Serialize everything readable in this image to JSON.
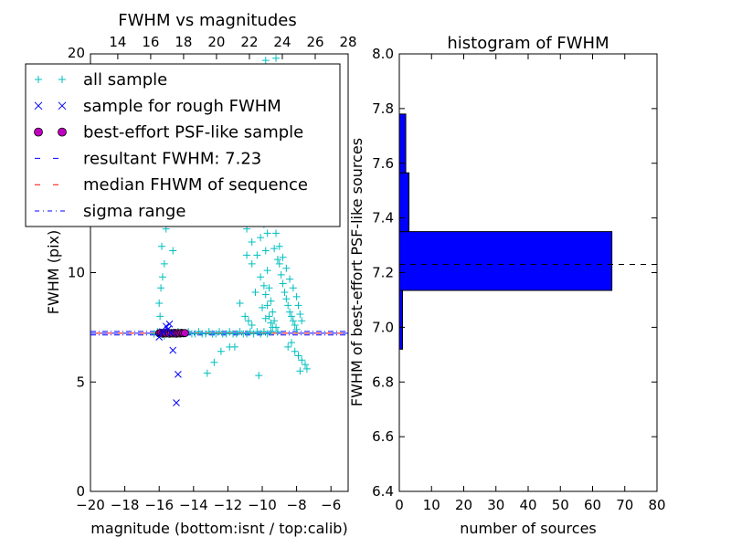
{
  "chart_data": [
    {
      "type": "scatter",
      "title": "FWHM vs magnitudes",
      "xlabel": "magnitude (bottom:isnt / top:calib)",
      "ylabel": "FWHM (pix)",
      "xlim": [
        -20,
        -5
      ],
      "ylim": [
        0,
        20
      ],
      "top_xlim": [
        12.34,
        28
      ],
      "x_ticks": [
        "−20",
        "−18",
        "−16",
        "−14",
        "−12",
        "−10",
        "−8",
        "−6"
      ],
      "y_ticks": [
        "0",
        "5",
        "10"
      ],
      "top_ticks": [
        "14",
        "16",
        "18",
        "20",
        "22",
        "24",
        "26",
        "28"
      ],
      "top_corner_label": "20",
      "legend": {
        "placement": "upper-left",
        "entries": [
          {
            "label": "all sample",
            "marker": "+",
            "color": "#00bfbf"
          },
          {
            "label": "sample for rough FWHM",
            "marker": "x",
            "color": "#0000ff"
          },
          {
            "label": "best-effort PSF-like sample",
            "marker": "o",
            "color": "#bf00bf"
          },
          {
            "label": "resultant FWHM: 7.23",
            "marker": "dashed",
            "color": "#0000ff"
          },
          {
            "label": "median FHWM of sequence",
            "marker": "dashed",
            "color": "#ff0000"
          },
          {
            "label": "sigma range",
            "marker": "dashdot",
            "color": "#0000ff"
          }
        ]
      },
      "resultant_fwhm": 7.23,
      "median_fwhm": 7.23,
      "sigma_range": [
        7.15,
        7.31
      ],
      "series": [
        {
          "name": "all sample",
          "points": [
            [
              -16.3,
              7.2
            ],
            [
              -16.1,
              7.3
            ],
            [
              -15.9,
              7.2
            ],
            [
              -15.7,
              7.1
            ],
            [
              -15.5,
              7.3
            ],
            [
              -15.3,
              7.2
            ],
            [
              -15.1,
              7.2
            ],
            [
              -14.9,
              7.3
            ],
            [
              -14.7,
              7.2
            ],
            [
              -14.5,
              7.2
            ],
            [
              -14.3,
              7.3
            ],
            [
              -14.1,
              7.2
            ],
            [
              -13.9,
              7.2
            ],
            [
              -13.7,
              7.3
            ],
            [
              -13.5,
              7.2
            ],
            [
              -13.3,
              7.2
            ],
            [
              -13.1,
              7.3
            ],
            [
              -12.9,
              7.2
            ],
            [
              -12.7,
              7.2
            ],
            [
              -12.5,
              7.3
            ],
            [
              -12.3,
              7.2
            ],
            [
              -12.1,
              7.2
            ],
            [
              -11.9,
              7.3
            ],
            [
              -11.7,
              7.2
            ],
            [
              -11.5,
              7.2
            ],
            [
              -11.3,
              7.3
            ],
            [
              -11.1,
              7.2
            ],
            [
              -10.9,
              7.2
            ],
            [
              -10.7,
              7.3
            ],
            [
              -10.5,
              7.2
            ],
            [
              -10.3,
              7.3
            ],
            [
              -10.1,
              7.2
            ],
            [
              -9.9,
              7.3
            ],
            [
              -9.7,
              7.2
            ],
            [
              -9.5,
              7.3
            ],
            [
              -16.0,
              8.6
            ],
            [
              -15.9,
              9.3
            ],
            [
              -15.8,
              9.8
            ],
            [
              -15.7,
              10.4
            ],
            [
              -15.95,
              8.0
            ],
            [
              -15.85,
              11.2
            ],
            [
              -15.6,
              12.0
            ],
            [
              -15.3,
              12.5
            ],
            [
              -15.2,
              11.0
            ],
            [
              -14.9,
              13.0
            ],
            [
              -14.6,
              12.6
            ],
            [
              -13.9,
              13.8
            ],
            [
              -13.5,
              12.3
            ],
            [
              -13.2,
              5.4
            ],
            [
              -12.8,
              5.9
            ],
            [
              -12.4,
              6.4
            ],
            [
              -11.9,
              6.6
            ],
            [
              -11.6,
              6.6
            ],
            [
              -11.3,
              8.6
            ],
            [
              -12.0,
              13.6
            ],
            [
              -11.8,
              12.5
            ],
            [
              -11.1,
              13.4
            ],
            [
              -10.9,
              12.0
            ],
            [
              -10.6,
              12.9
            ],
            [
              -10.3,
              13.3
            ],
            [
              -10.9,
              10.8
            ],
            [
              -10.6,
              10.4
            ],
            [
              -10.3,
              10.8
            ],
            [
              -10.6,
              11.4
            ],
            [
              -10.1,
              11.6
            ],
            [
              -9.9,
              12.2
            ],
            [
              -9.6,
              13.6
            ],
            [
              -9.3,
              14.2
            ],
            [
              -9.1,
              13.6
            ],
            [
              -8.9,
              14.8
            ],
            [
              -9.5,
              16.4
            ],
            [
              -9.4,
              18.6
            ],
            [
              -9.2,
              19.8
            ],
            [
              -9.8,
              19.7
            ],
            [
              -9.0,
              15.9
            ],
            [
              -9.8,
              11.0
            ],
            [
              -9.7,
              10.1
            ],
            [
              -9.6,
              9.3
            ],
            [
              -9.5,
              8.7
            ],
            [
              -9.4,
              8.2
            ],
            [
              -9.3,
              7.8
            ],
            [
              -9.2,
              7.5
            ],
            [
              -9.1,
              7.3
            ],
            [
              -9.9,
              9.4
            ],
            [
              -9.8,
              9.0
            ],
            [
              -9.7,
              8.5
            ],
            [
              -9.6,
              8.0
            ],
            [
              -9.5,
              7.7
            ],
            [
              -9.4,
              7.5
            ],
            [
              -9.0,
              10.4
            ],
            [
              -8.9,
              9.9
            ],
            [
              -8.8,
              9.5
            ],
            [
              -8.7,
              9.1
            ],
            [
              -8.6,
              8.8
            ],
            [
              -8.5,
              8.5
            ],
            [
              -8.4,
              8.2
            ],
            [
              -8.3,
              8.0
            ],
            [
              -8.2,
              7.8
            ],
            [
              -8.1,
              7.6
            ],
            [
              -8.0,
              7.4
            ],
            [
              -9.2,
              11.8
            ],
            [
              -9.0,
              11.2
            ],
            [
              -8.8,
              10.7
            ],
            [
              -8.6,
              10.2
            ],
            [
              -8.4,
              9.7
            ],
            [
              -8.2,
              9.3
            ],
            [
              -8.0,
              8.9
            ],
            [
              -7.9,
              8.5
            ],
            [
              -7.8,
              8.1
            ],
            [
              -7.7,
              7.8
            ],
            [
              -8.3,
              6.8
            ],
            [
              -8.1,
              6.4
            ],
            [
              -7.9,
              6.2
            ],
            [
              -7.7,
              6.0
            ],
            [
              -7.5,
              5.8
            ],
            [
              -7.4,
              5.6
            ],
            [
              -8.5,
              6.6
            ],
            [
              -7.8,
              5.5
            ],
            [
              -10.2,
              5.3
            ],
            [
              -10.6,
              7.6
            ],
            [
              -10.8,
              7.8
            ],
            [
              -11.0,
              8.0
            ],
            [
              -9.8,
              7.9
            ],
            [
              -10.0,
              8.4
            ],
            [
              -10.4,
              9.1
            ],
            [
              -10.1,
              9.8
            ],
            [
              -9.6,
              12.8
            ],
            [
              -9.4,
              12.4
            ],
            [
              -9.2,
              12.9
            ],
            [
              -9.7,
              11.8
            ],
            [
              -9.3,
              11.1
            ],
            [
              -9.1,
              10.6
            ],
            [
              -8.95,
              12.4
            ],
            [
              -9.55,
              14.9
            ],
            [
              -9.35,
              15.6
            ],
            [
              -9.05,
              16.9
            ],
            [
              -9.6,
              17.8
            ],
            [
              -9.25,
              17.2
            ]
          ]
        },
        {
          "name": "sample for rough FWHM",
          "points": [
            [
              -16.0,
              7.05
            ],
            [
              -15.6,
              7.55
            ],
            [
              -15.4,
              7.65
            ],
            [
              -15.2,
              6.45
            ],
            [
              -14.9,
              5.35
            ],
            [
              -15.0,
              4.05
            ],
            [
              -15.8,
              7.3
            ],
            [
              -15.5,
              7.4
            ],
            [
              -15.3,
              7.25
            ]
          ]
        },
        {
          "name": "best-effort PSF-like sample",
          "points": [
            [
              -16.0,
              7.23
            ],
            [
              -15.9,
              7.25
            ],
            [
              -15.8,
              7.21
            ],
            [
              -15.7,
              7.24
            ],
            [
              -15.6,
              7.22
            ],
            [
              -15.5,
              7.26
            ],
            [
              -15.4,
              7.21
            ],
            [
              -15.3,
              7.24
            ],
            [
              -15.2,
              7.22
            ],
            [
              -15.1,
              7.25
            ],
            [
              -15.0,
              7.21
            ],
            [
              -14.9,
              7.24
            ],
            [
              -14.8,
              7.22
            ],
            [
              -14.7,
              7.25
            ],
            [
              -14.6,
              7.23
            ],
            [
              -14.5,
              7.24
            ]
          ]
        }
      ]
    },
    {
      "type": "bar",
      "orientation": "horizontal",
      "title": "histogram of FWHM",
      "xlabel": "number of sources",
      "ylabel": "FWHM of best-effort PSF-like sources",
      "xlim": [
        0,
        80
      ],
      "ylim": [
        6.4,
        8.0
      ],
      "x_ticks": [
        "0",
        "10",
        "20",
        "30",
        "40",
        "50",
        "60",
        "70",
        "80"
      ],
      "y_ticks": [
        "6.4",
        "6.6",
        "6.8",
        "7.0",
        "7.2",
        "7.4",
        "7.6",
        "7.8",
        "8.0"
      ],
      "bins": [
        {
          "from": 6.92,
          "to": 7.135,
          "count": 1
        },
        {
          "from": 7.135,
          "to": 7.35,
          "count": 66
        },
        {
          "from": 7.35,
          "to": 7.565,
          "count": 3
        },
        {
          "from": 7.565,
          "to": 7.78,
          "count": 2
        }
      ],
      "bar_color": "#0000ff",
      "reference_line": 7.23
    }
  ]
}
